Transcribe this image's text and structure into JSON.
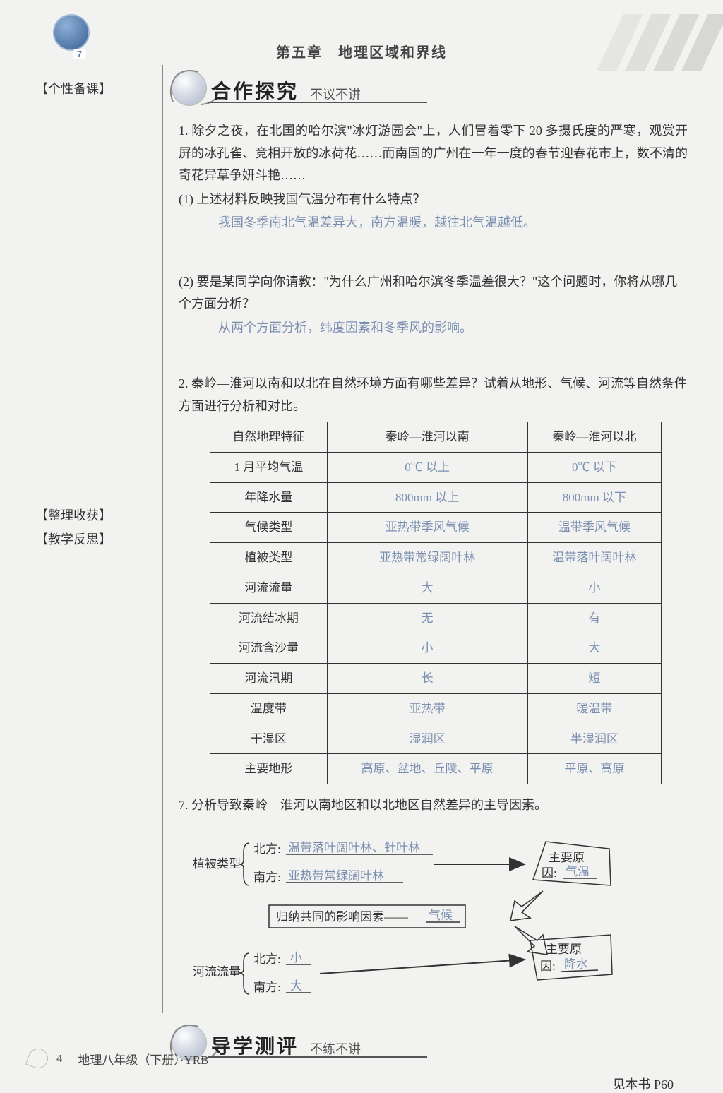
{
  "header": {
    "page_badge": "7",
    "chapter_title": "第五章　地理区域和界线"
  },
  "sidebar": {
    "note1": "【个性备课】",
    "note2": "【整理收获】",
    "note3": "【教学反思】"
  },
  "section1": {
    "title": "合作探究",
    "subtitle": "不议不讲"
  },
  "q1": {
    "number": "1.",
    "text": "除夕之夜，在北国的哈尔滨\"冰灯游园会\"上，人们冒着零下 20 多摄氏度的严寒，观赏开屏的冰孔雀、竞相开放的冰荷花……而南国的广州在一年一度的春节迎春花市上，数不清的奇花异草争妍斗艳……",
    "sub1_label": "(1)",
    "sub1_text": "上述材料反映我国气温分布有什么特点？",
    "sub1_answer": "我国冬季南北气温差异大，南方温暖，越往北气温越低。",
    "sub2_label": "(2)",
    "sub2_text": "要是某同学向你请教：\"为什么广州和哈尔滨冬季温差很大？\"这个问题时，你将从哪几个方面分析？",
    "sub2_answer": "从两个方面分析，纬度因素和冬季风的影响。"
  },
  "q2": {
    "number": "2.",
    "text": "秦岭—淮河以南和以北在自然环境方面有哪些差异？试着从地形、气候、河流等自然条件方面进行分析和对比。"
  },
  "table": {
    "head_c1": "自然地理特征",
    "head_c2": "秦岭—淮河以南",
    "head_c3": "秦岭—淮河以北",
    "rows": [
      {
        "label": "1 月平均气温",
        "south": "0℃ 以上",
        "north": "0℃ 以下"
      },
      {
        "label": "年降水量",
        "south": "800mm 以上",
        "north": "800mm 以下"
      },
      {
        "label": "气候类型",
        "south": "亚热带季风气候",
        "north": "温带季风气候"
      },
      {
        "label": "植被类型",
        "south": "亚热带常绿阔叶林",
        "north": "温带落叶阔叶林"
      },
      {
        "label": "河流流量",
        "south": "大",
        "north": "小"
      },
      {
        "label": "河流结冰期",
        "south": "无",
        "north": "有"
      },
      {
        "label": "河流含沙量",
        "south": "小",
        "north": "大"
      },
      {
        "label": "河流汛期",
        "south": "长",
        "north": "短"
      },
      {
        "label": "温度带",
        "south": "亚热带",
        "north": "暖温带"
      },
      {
        "label": "干湿区",
        "south": "湿润区",
        "north": "半湿润区"
      },
      {
        "label": "主要地形",
        "south": "高原、盆地、丘陵、平原",
        "north": "平原、高原"
      }
    ]
  },
  "q7": {
    "number": "7.",
    "text": "分析导致秦岭—淮河以南地区和以北地区自然差异的主导因素。"
  },
  "diagram": {
    "veg_label": "植被类型",
    "veg_north_label": "北方:",
    "veg_north_ans": "温带落叶阔叶林、针叶林",
    "veg_south_label": "南方:",
    "veg_south_ans": "亚热带常绿阔叶林",
    "mid_box_prefix": "归纳共同的影响因素——",
    "mid_box_ans": "气候",
    "flow_label": "河流流量",
    "flow_north_label": "北方:",
    "flow_north_ans": "小",
    "flow_south_label": "南方:",
    "flow_south_ans": "大",
    "cause_top_label": "主要原",
    "cause_top_label2": "因:",
    "cause_top_ans": "气温",
    "cause_bot_label": "主要原",
    "cause_bot_label2": "因:",
    "cause_bot_ans": "降水"
  },
  "section2": {
    "title": "导学测评",
    "subtitle": "不练不讲"
  },
  "footer_ref": "见本书 P60",
  "footer": {
    "page": "4",
    "text": "地理八年级（下册）·YRB"
  },
  "colors": {
    "answer": "#7a8fb0",
    "text": "#333333",
    "border": "#333333"
  }
}
